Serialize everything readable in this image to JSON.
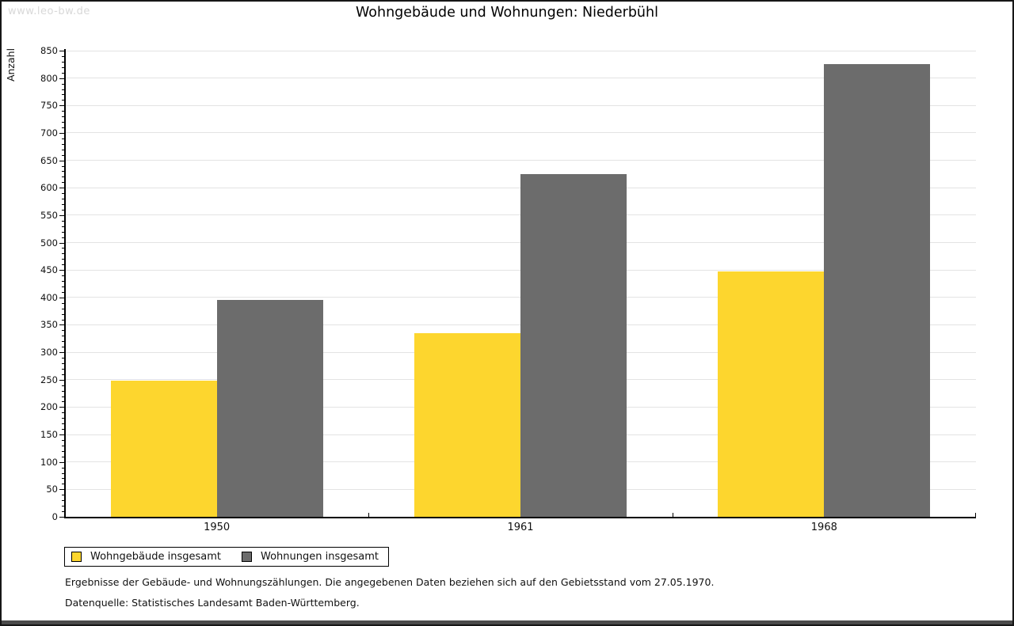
{
  "watermark": "www.leo-bw.de",
  "title": "Wohngebäude und Wohnungen: Niederbühl",
  "footnotes": {
    "line1": "Ergebnisse der Gebäude- und Wohnungszählungen. Die angegebenen Daten beziehen sich auf den Gebietsstand vom 27.05.1970.",
    "line2": "Datenquelle: Statistisches Landesamt Baden-Württemberg."
  },
  "colors": {
    "series_yellow": "#fdd62e",
    "series_gray": "#6c6c6c",
    "gridline": "#e3e3e3",
    "axis": "#000000",
    "watermark": "#d8d8d8",
    "frame_border": "#161616",
    "bottom_strip": "#4b4b4b"
  },
  "chart_data": {
    "type": "bar",
    "title": "Wohngebäude und Wohnungen: Niederbühl",
    "xlabel": "",
    "ylabel": "Anzahl",
    "categories": [
      "1950",
      "1961",
      "1968"
    ],
    "series": [
      {
        "name": "Wohngebäude insgesamt",
        "color": "#fdd62e",
        "values": [
          248,
          335,
          448
        ]
      },
      {
        "name": "Wohnungen insgesamt",
        "color": "#6c6c6c",
        "values": [
          395,
          625,
          825
        ]
      }
    ],
    "ylim": [
      0,
      850
    ],
    "ytick_major": 50,
    "ytick_minor": 10,
    "grid": "horizontal-major",
    "legend_position": "bottom-left"
  }
}
